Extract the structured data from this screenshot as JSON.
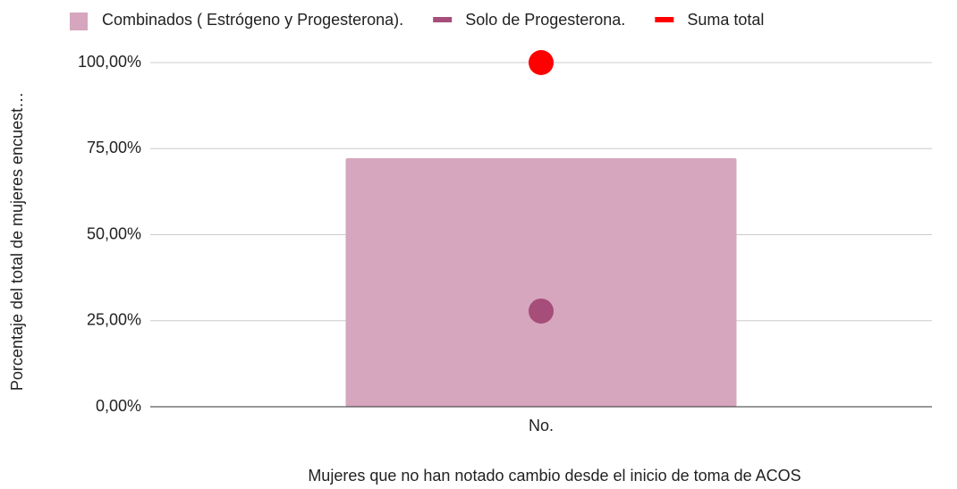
{
  "chart_data": {
    "type": "bar",
    "x_label": "Mujeres que no han notado cambio desde el inicio de  toma de ACOS",
    "y_label": "Porcentaje del total de mujeres encuest…",
    "categories": [
      "No."
    ],
    "series": [
      {
        "name": "Combinados ( Estrógeno y Progesterona).",
        "color": "#d5a6bd",
        "type": "bar",
        "values": [
          72.2
        ]
      },
      {
        "name": "Solo de Progesterona.",
        "color": "#a64d79",
        "type": "scatter",
        "values": [
          27.8
        ]
      },
      {
        "name": "Suma total",
        "color": "#ff0000",
        "type": "scatter",
        "values": [
          100
        ]
      }
    ],
    "ylim": [
      0,
      100
    ],
    "yticks": [
      {
        "value": 0,
        "label": "0,00%"
      },
      {
        "value": 25,
        "label": "25,00%"
      },
      {
        "value": 50,
        "label": "50,00%"
      },
      {
        "value": 75,
        "label": "75,00%"
      },
      {
        "value": 100,
        "label": "100,00%"
      }
    ],
    "grid": true,
    "legend": "top"
  }
}
